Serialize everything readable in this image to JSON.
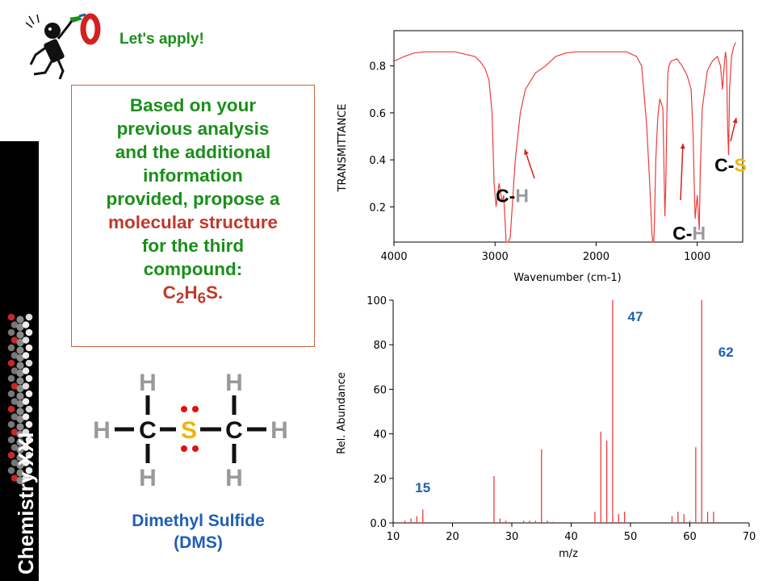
{
  "slide": {
    "headline": "Let's apply!",
    "sidebar_title": "Chemistry XXI",
    "question": {
      "lines": [
        "Based on your",
        "previous analysis",
        "and the additional",
        "information",
        "provided, propose a"
      ],
      "highlight": "molecular structure",
      "lines_after": [
        "for the third",
        "compound:"
      ],
      "formula_parts": [
        "C",
        "2",
        "H",
        "6",
        "S."
      ]
    },
    "structure": {
      "atoms": {
        "carbon": "C",
        "sulfur": "S",
        "hydrogen": "H"
      },
      "caption_line1": "Dimethyl Sulfide",
      "caption_line2": "(DMS)"
    },
    "colors": {
      "accent_green": "#1a8f1a",
      "accent_red": "#c0392b",
      "accent_blue": "#1f5fb4",
      "spectrum": "#ee3b3b"
    }
  },
  "chart_data": [
    {
      "type": "line",
      "ylabel": "TRANSMITTANCE",
      "xlabel": "Wavenumber (cm-1)",
      "xlim": [
        4000,
        550
      ],
      "ylim": [
        0.05,
        0.95
      ],
      "xticks": [
        4000,
        3000,
        2000,
        1000
      ],
      "yticks": [
        0.2,
        0.4,
        0.6,
        0.8
      ],
      "x": [
        4000,
        3900,
        3800,
        3700,
        3600,
        3500,
        3400,
        3300,
        3200,
        3150,
        3100,
        3060,
        3030,
        3010,
        2990,
        2960,
        2930,
        2915,
        2890,
        2870,
        2850,
        2830,
        2800,
        2750,
        2700,
        2600,
        2500,
        2400,
        2300,
        2200,
        2100,
        2000,
        1900,
        1800,
        1700,
        1600,
        1550,
        1500,
        1470,
        1450,
        1440,
        1430,
        1425,
        1420,
        1410,
        1390,
        1370,
        1340,
        1330,
        1320,
        1310,
        1300,
        1290,
        1280,
        1260,
        1200,
        1150,
        1100,
        1060,
        1040,
        1030,
        1020,
        1000,
        980,
        970,
        950,
        900,
        850,
        800,
        770,
        750,
        730,
        720,
        710,
        700,
        690,
        680,
        660,
        640,
        620
      ],
      "y": [
        0.82,
        0.84,
        0.855,
        0.86,
        0.86,
        0.86,
        0.86,
        0.85,
        0.84,
        0.82,
        0.79,
        0.74,
        0.6,
        0.3,
        0.2,
        0.3,
        0.22,
        0.25,
        0.05,
        0.05,
        0.07,
        0.2,
        0.4,
        0.6,
        0.7,
        0.77,
        0.8,
        0.84,
        0.855,
        0.86,
        0.86,
        0.86,
        0.86,
        0.86,
        0.86,
        0.84,
        0.8,
        0.55,
        0.3,
        0.1,
        0.05,
        0.05,
        0.1,
        0.2,
        0.4,
        0.58,
        0.66,
        0.62,
        0.4,
        0.16,
        0.3,
        0.6,
        0.77,
        0.8,
        0.82,
        0.83,
        0.8,
        0.76,
        0.7,
        0.5,
        0.3,
        0.15,
        0.25,
        0.1,
        0.35,
        0.62,
        0.78,
        0.82,
        0.84,
        0.8,
        0.7,
        0.82,
        0.86,
        0.82,
        0.55,
        0.42,
        0.7,
        0.84,
        0.88,
        0.9
      ],
      "annotations": [
        {
          "label_parts": [
            "C",
            "-",
            "H"
          ],
          "x": 2830,
          "y": 0.22
        },
        {
          "label_parts": [
            "C",
            "-",
            "H"
          ],
          "x": 1080,
          "y": 0.06
        },
        {
          "label_parts": [
            "C",
            "-",
            "S"
          ],
          "x": 670,
          "y": 0.35
        }
      ]
    },
    {
      "type": "bar",
      "ylabel": "Rel. Abundance",
      "xlabel": "m/z",
      "xlim": [
        10,
        70
      ],
      "ylim": [
        0,
        100
      ],
      "xticks": [
        10,
        20,
        30,
        40,
        50,
        60,
        70
      ],
      "yticks": [
        "0.0",
        "20",
        "40",
        "60",
        "80",
        "100"
      ],
      "x": [
        12,
        13,
        14,
        15,
        27,
        28,
        29,
        32,
        33,
        34,
        35,
        36,
        37,
        44,
        45,
        46,
        47,
        48,
        49,
        57,
        58,
        59,
        60,
        61,
        62,
        63,
        64
      ],
      "values": [
        1,
        2,
        3,
        6,
        21,
        2,
        1,
        1,
        1,
        1,
        33,
        1,
        0.5,
        5,
        41,
        37,
        100,
        4,
        5,
        3,
        5,
        4,
        1,
        34,
        100,
        5,
        5
      ],
      "peak_labels": [
        {
          "text": "15",
          "x": 15
        },
        {
          "text": "47",
          "x": 47
        },
        {
          "text": "62",
          "x": 62
        }
      ]
    }
  ]
}
